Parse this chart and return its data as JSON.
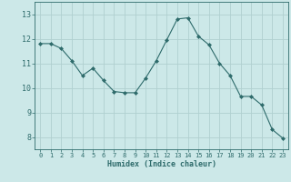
{
  "x": [
    0,
    1,
    2,
    3,
    4,
    5,
    6,
    7,
    8,
    9,
    10,
    11,
    12,
    13,
    14,
    15,
    16,
    17,
    18,
    19,
    20,
    21,
    22,
    23
  ],
  "y": [
    11.8,
    11.8,
    11.6,
    11.1,
    10.5,
    10.8,
    10.3,
    9.85,
    9.8,
    9.8,
    10.4,
    11.1,
    11.95,
    12.8,
    12.85,
    12.1,
    11.75,
    11.0,
    10.5,
    9.65,
    9.65,
    9.3,
    8.3,
    7.95
  ],
  "line_color": "#2e6b6b",
  "marker": "D",
  "marker_size": 2,
  "bg_color": "#cce8e8",
  "grid_color": "#b0d0d0",
  "xlabel": "Humidex (Indice chaleur)",
  "ylim": [
    7.5,
    13.5
  ],
  "xlim": [
    -0.5,
    23.5
  ],
  "yticks": [
    8,
    9,
    10,
    11,
    12,
    13
  ],
  "xticks": [
    0,
    1,
    2,
    3,
    4,
    5,
    6,
    7,
    8,
    9,
    10,
    11,
    12,
    13,
    14,
    15,
    16,
    17,
    18,
    19,
    20,
    21,
    22,
    23
  ],
  "tick_fontsize": 5,
  "xlabel_fontsize": 6,
  "linewidth": 0.8
}
